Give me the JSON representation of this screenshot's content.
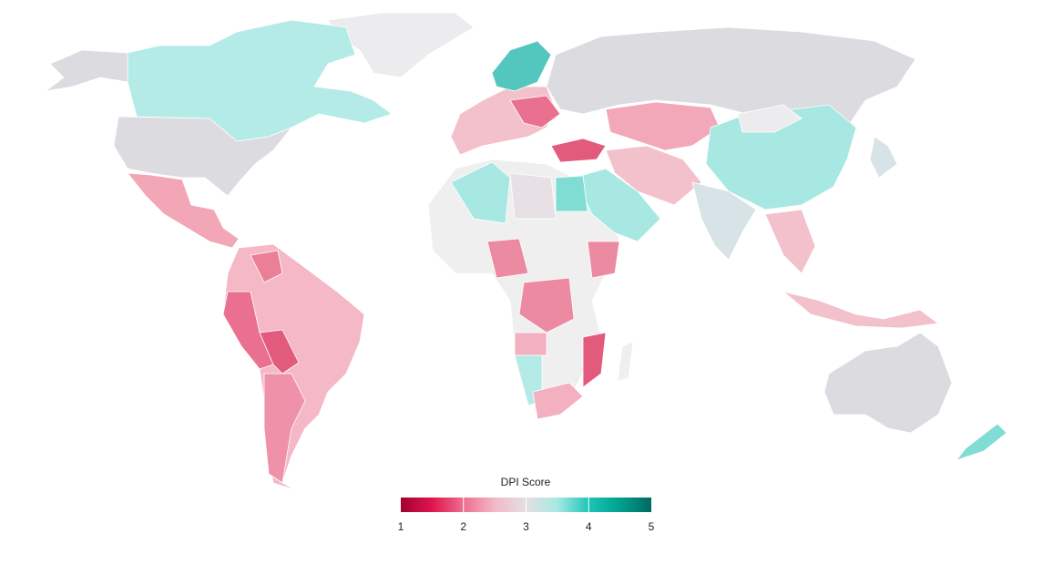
{
  "legend": {
    "title": "DPI Score",
    "min": 1,
    "max": 5,
    "ticks": [
      1,
      2,
      3,
      4,
      5
    ],
    "colors": [
      "#a3002f",
      "#e0154e",
      "#ec6f8e",
      "#f3b9c6",
      "#e3dfe2",
      "#a8e8e3",
      "#1cc6b6",
      "#00a08f",
      "#006a62"
    ]
  }
}
